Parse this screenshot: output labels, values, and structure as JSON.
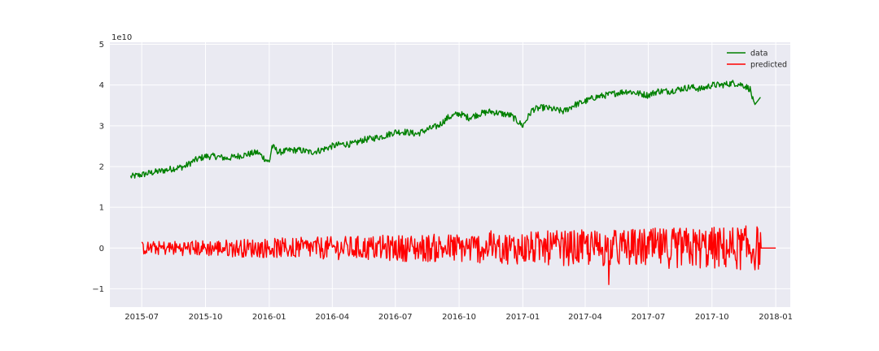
{
  "chart_data": {
    "type": "line",
    "title": "",
    "xlabel": "",
    "ylabel": "",
    "y_offset_label": "1e10",
    "y_scale": 10000000000,
    "xlim": [
      "2015-05-16",
      "2018-01-22"
    ],
    "ylim": [
      -1.45,
      5.05
    ],
    "grid": true,
    "legend_position": "top-right",
    "x_ticks": [
      {
        "date": "2015-07-01",
        "label": "2015-07"
      },
      {
        "date": "2015-10-01",
        "label": "2015-10"
      },
      {
        "date": "2016-01-01",
        "label": "2016-01"
      },
      {
        "date": "2016-04-01",
        "label": "2016-04"
      },
      {
        "date": "2016-07-01",
        "label": "2016-07"
      },
      {
        "date": "2016-10-01",
        "label": "2016-10"
      },
      {
        "date": "2017-01-01",
        "label": "2017-01"
      },
      {
        "date": "2017-04-01",
        "label": "2017-04"
      },
      {
        "date": "2017-07-01",
        "label": "2017-07"
      },
      {
        "date": "2017-10-01",
        "label": "2017-10"
      },
      {
        "date": "2018-01-01",
        "label": "2018-01"
      }
    ],
    "y_ticks": [
      {
        "value": 5,
        "label": "5"
      },
      {
        "value": 4,
        "label": "4"
      },
      {
        "value": 3,
        "label": "3"
      },
      {
        "value": 2,
        "label": "2"
      },
      {
        "value": 1,
        "label": "1"
      },
      {
        "value": 0,
        "label": "0"
      },
      {
        "value": -1,
        "label": "−1"
      }
    ],
    "series": [
      {
        "name": "data",
        "color": "#008000",
        "points": [
          [
            "2015-06-15",
            1.75
          ],
          [
            "2015-07-01",
            1.8
          ],
          [
            "2015-07-15",
            1.85
          ],
          [
            "2015-08-01",
            1.9
          ],
          [
            "2015-08-15",
            1.95
          ],
          [
            "2015-09-01",
            2.0
          ],
          [
            "2015-09-15",
            2.15
          ],
          [
            "2015-10-01",
            2.25
          ],
          [
            "2015-10-15",
            2.25
          ],
          [
            "2015-11-01",
            2.2
          ],
          [
            "2015-11-15",
            2.25
          ],
          [
            "2015-12-01",
            2.3
          ],
          [
            "2015-12-15",
            2.35
          ],
          [
            "2016-01-01",
            2.1
          ],
          [
            "2016-01-05",
            2.5
          ],
          [
            "2016-01-15",
            2.35
          ],
          [
            "2016-02-01",
            2.4
          ],
          [
            "2016-02-15",
            2.4
          ],
          [
            "2016-03-01",
            2.35
          ],
          [
            "2016-03-15",
            2.4
          ],
          [
            "2016-04-01",
            2.5
          ],
          [
            "2016-04-15",
            2.55
          ],
          [
            "2016-05-01",
            2.55
          ],
          [
            "2016-05-15",
            2.65
          ],
          [
            "2016-06-01",
            2.7
          ],
          [
            "2016-06-15",
            2.75
          ],
          [
            "2016-07-01",
            2.85
          ],
          [
            "2016-07-15",
            2.85
          ],
          [
            "2016-08-01",
            2.8
          ],
          [
            "2016-08-15",
            2.9
          ],
          [
            "2016-09-01",
            3.0
          ],
          [
            "2016-09-15",
            3.2
          ],
          [
            "2016-10-01",
            3.3
          ],
          [
            "2016-10-15",
            3.2
          ],
          [
            "2016-11-01",
            3.3
          ],
          [
            "2016-11-15",
            3.35
          ],
          [
            "2016-12-01",
            3.3
          ],
          [
            "2016-12-15",
            3.25
          ],
          [
            "2017-01-01",
            3.0
          ],
          [
            "2017-01-15",
            3.4
          ],
          [
            "2017-02-01",
            3.45
          ],
          [
            "2017-02-15",
            3.4
          ],
          [
            "2017-03-01",
            3.35
          ],
          [
            "2017-03-15",
            3.5
          ],
          [
            "2017-04-01",
            3.6
          ],
          [
            "2017-04-15",
            3.7
          ],
          [
            "2017-05-01",
            3.75
          ],
          [
            "2017-05-15",
            3.8
          ],
          [
            "2017-06-01",
            3.85
          ],
          [
            "2017-06-15",
            3.8
          ],
          [
            "2017-07-01",
            3.75
          ],
          [
            "2017-07-15",
            3.85
          ],
          [
            "2017-08-01",
            3.85
          ],
          [
            "2017-08-15",
            3.9
          ],
          [
            "2017-09-01",
            3.95
          ],
          [
            "2017-09-15",
            3.9
          ],
          [
            "2017-10-01",
            4.0
          ],
          [
            "2017-10-15",
            4.0
          ],
          [
            "2017-11-01",
            4.05
          ],
          [
            "2017-11-15",
            4.0
          ],
          [
            "2017-11-25",
            3.9
          ],
          [
            "2017-12-01",
            3.5
          ],
          [
            "2017-12-10",
            3.7
          ]
        ],
        "noise_amplitude": 0.08
      },
      {
        "name": "predicted",
        "color": "#ff0000",
        "points": [
          [
            "2015-07-01",
            0.0
          ],
          [
            "2017-12-10",
            0.0
          ],
          [
            "2018-01-01",
            0.0
          ]
        ],
        "noise_amplitude": 0.1
      }
    ]
  }
}
